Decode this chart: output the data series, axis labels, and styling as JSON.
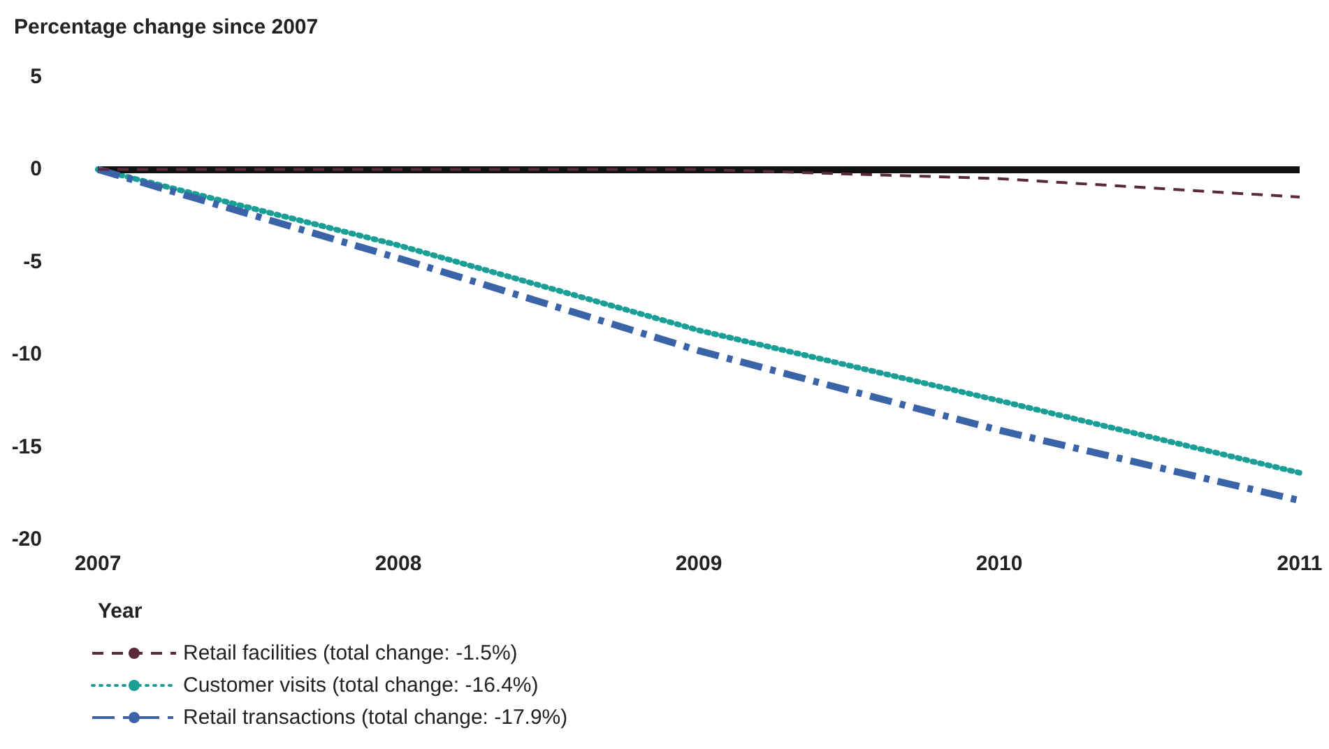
{
  "chart_data": {
    "type": "line",
    "ylabel": "Percentage change since 2007",
    "xlabel": "Year",
    "categories": [
      "2007",
      "2008",
      "2009",
      "2010",
      "2011"
    ],
    "series": [
      {
        "name": "Retail facilities (total change: -1.5%)",
        "color": "#5a2a3a",
        "line_style": "dashed",
        "values": [
          0,
          0,
          0,
          -0.5,
          -1.5
        ]
      },
      {
        "name": "Customer visits (total change: -16.4%)",
        "color": "#1a9e96",
        "line_style": "dotted",
        "values": [
          0,
          -4.1,
          -8.7,
          -12.5,
          -16.4
        ]
      },
      {
        "name": "Retail transactions (total change: -17.9%)",
        "color": "#3a63a8",
        "line_style": "dashdot",
        "values": [
          0,
          -4.8,
          -9.8,
          -14.1,
          -17.9
        ]
      }
    ],
    "ylim": [
      -20,
      5
    ],
    "yticks": [
      -20,
      -15,
      -10,
      -5,
      0,
      5
    ],
    "grid": false,
    "legend": "bottom left",
    "marker": "none",
    "ref_lines": [
      {
        "axis": "y",
        "value": 0,
        "color": "#111111"
      }
    ]
  }
}
